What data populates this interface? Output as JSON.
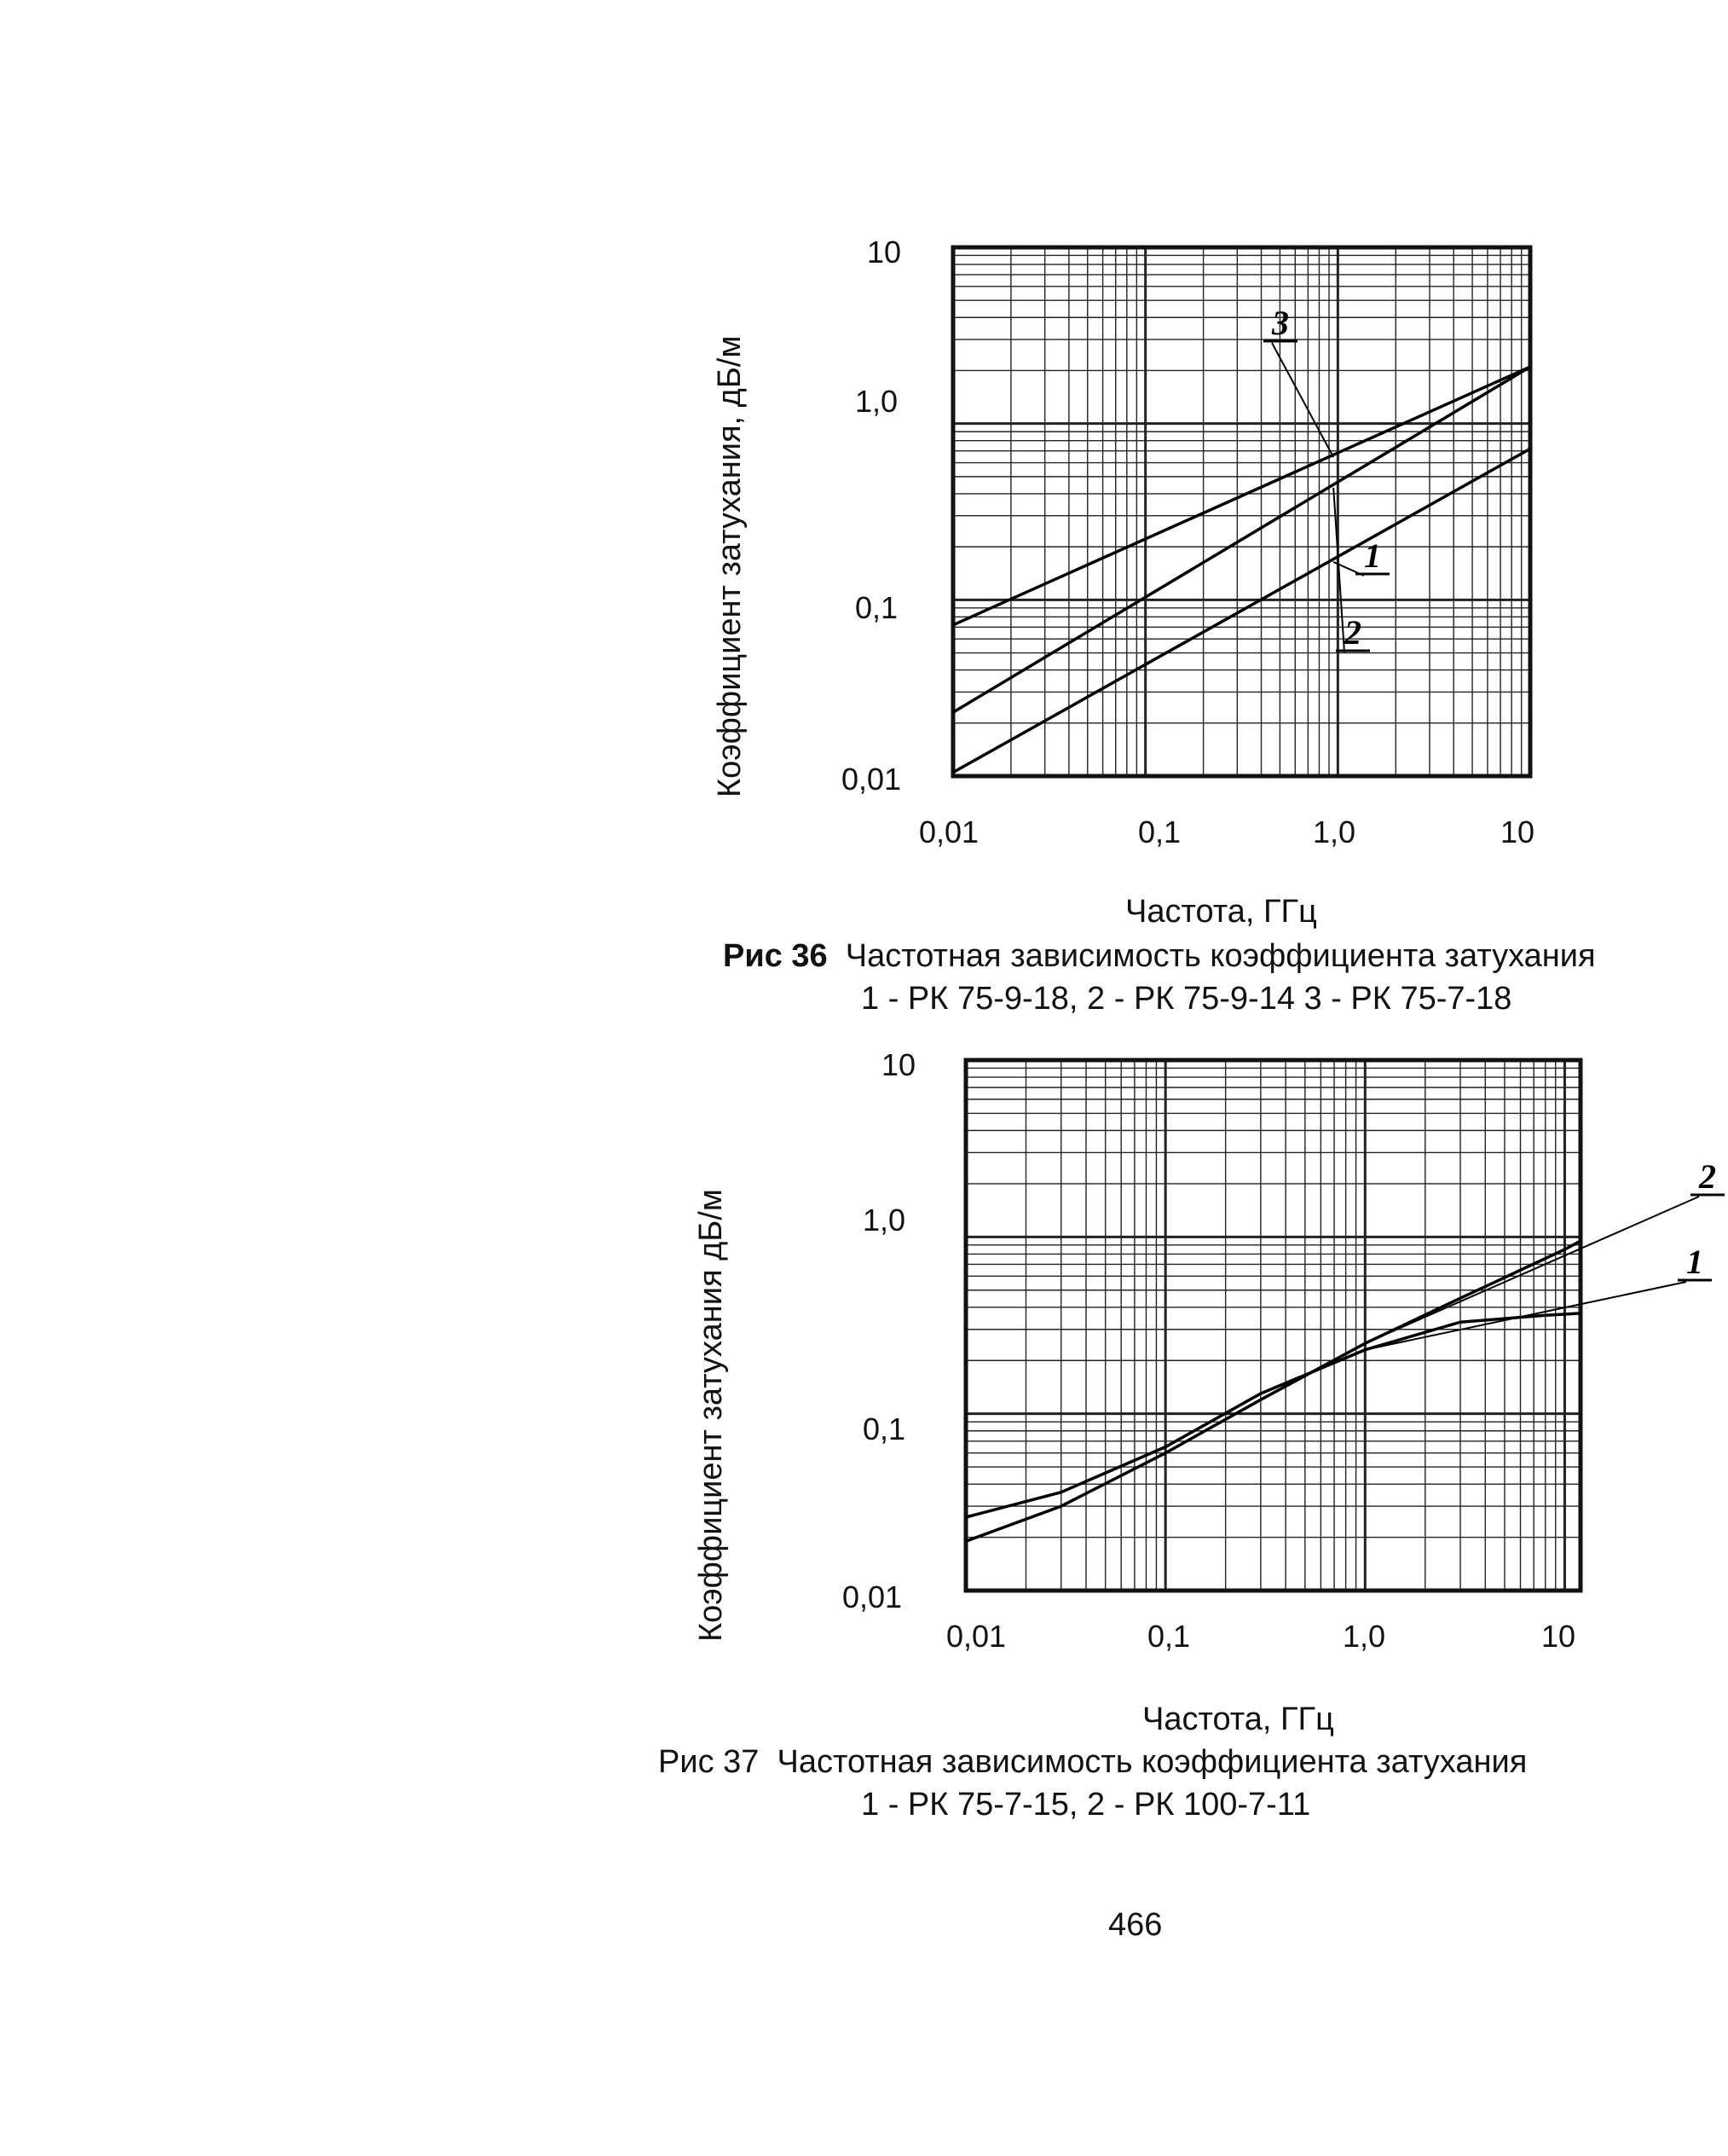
{
  "page_number": "466",
  "chart_data": [
    {
      "type": "line",
      "y_scale": "log",
      "x_scale": "log",
      "xlim": [
        0.01,
        10
      ],
      "ylim": [
        0.01,
        10
      ],
      "ylabel": "Коэффициент затухания, дБ/м",
      "xlabel": "Частота, ГГц",
      "x_ticks": [
        "0,01",
        "0,1",
        "1,0",
        "10"
      ],
      "y_ticks": [
        "10",
        "1,0",
        "0,1",
        "0,01"
      ],
      "caption": {
        "prefix": "Рис 36",
        "title": "Частотная зависимость коэффициента затухания",
        "legend": "1 - РК 75-9-18, 2 - РК 75-9-14  3 - РК 75-7-18"
      },
      "grid": true,
      "series": [
        {
          "name": "1",
          "x": [
            0.01,
            10
          ],
          "y": [
            0.0105,
            0.72
          ]
        },
        {
          "name": "2",
          "x": [
            0.01,
            10
          ],
          "y": [
            0.023,
            2.1
          ]
        },
        {
          "name": "3",
          "x": [
            0.01,
            10
          ],
          "y": [
            0.072,
            2.1
          ]
        }
      ],
      "annotations": [
        {
          "text": "3",
          "series": "3"
        },
        {
          "text": "1",
          "series": "1"
        },
        {
          "text": "2",
          "series": "2"
        }
      ]
    },
    {
      "type": "line",
      "y_scale": "log",
      "x_scale": "log",
      "xlim": [
        0.01,
        12
      ],
      "ylim": [
        0.01,
        10
      ],
      "ylabel": "Коэффициент затухания  дБ/м",
      "xlabel": "Частота, ГГц",
      "x_ticks": [
        "0,01",
        "0,1",
        "1,0",
        "10"
      ],
      "y_ticks": [
        "10",
        "1,0",
        "0,1",
        "0,01"
      ],
      "caption": {
        "prefix": "Рис  37",
        "title": "Частотная зависимость коэффициента затухания",
        "legend": "1 - РК 75-7-15, 2 - РК 100-7-11"
      },
      "grid": true,
      "series": [
        {
          "name": "1",
          "x": [
            0.01,
            0.03,
            0.1,
            0.3,
            1.0,
            3.0,
            8.0,
            12.0
          ],
          "y": [
            0.026,
            0.036,
            0.065,
            0.13,
            0.23,
            0.33,
            0.36,
            0.37
          ]
        },
        {
          "name": "2",
          "x": [
            0.01,
            0.03,
            0.1,
            0.3,
            1.0,
            3.0,
            10.0,
            12.0
          ],
          "y": [
            0.019,
            0.03,
            0.06,
            0.12,
            0.25,
            0.45,
            0.85,
            0.95
          ]
        }
      ],
      "annotations": [
        {
          "text": "2",
          "series": "2"
        },
        {
          "text": "1",
          "series": "1"
        }
      ]
    }
  ]
}
